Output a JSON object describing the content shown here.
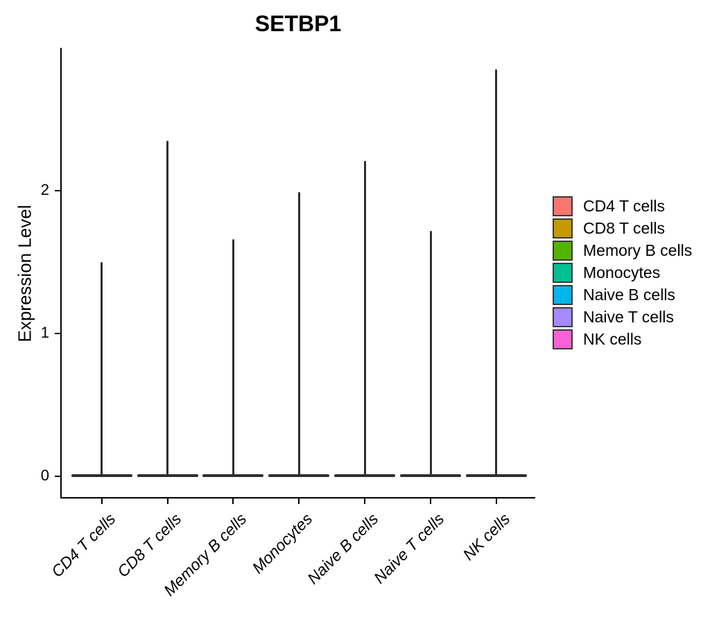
{
  "chart_data": {
    "type": "violin",
    "title": "SETBP1",
    "ylabel": "Expression Level",
    "xlabel": "",
    "ylim": [
      0,
      3.0
    ],
    "y_ticks": [
      0,
      1,
      2
    ],
    "grid": false,
    "legend_position": "right",
    "categories": [
      "CD4 T cells",
      "CD8 T cells",
      "Memory B cells",
      "Monocytes",
      "Naive B cells",
      "Naive T cells",
      "NK cells"
    ],
    "series": [
      {
        "name": "CD4 T cells",
        "color": "#F8766D",
        "bulk_value": 0,
        "max_value": 1.5
      },
      {
        "name": "CD8 T cells",
        "color": "#C49A00",
        "bulk_value": 0,
        "max_value": 2.35
      },
      {
        "name": "Memory B cells",
        "color": "#53B400",
        "bulk_value": 0,
        "max_value": 1.66
      },
      {
        "name": "Monocytes",
        "color": "#00C094",
        "bulk_value": 0,
        "max_value": 1.99
      },
      {
        "name": "Naive B cells",
        "color": "#00B6EB",
        "bulk_value": 0,
        "max_value": 2.21
      },
      {
        "name": "Naive T cells",
        "color": "#A58AFF",
        "bulk_value": 0,
        "max_value": 1.72
      },
      {
        "name": "NK cells",
        "color": "#FB61D7",
        "bulk_value": 0,
        "max_value": 2.85
      }
    ]
  },
  "style": {
    "violin_outline_color": "#2e2e2e",
    "axis_color": "#000000",
    "swatch_border_color": "#3a3a3a",
    "background_color": "#ffffff"
  }
}
